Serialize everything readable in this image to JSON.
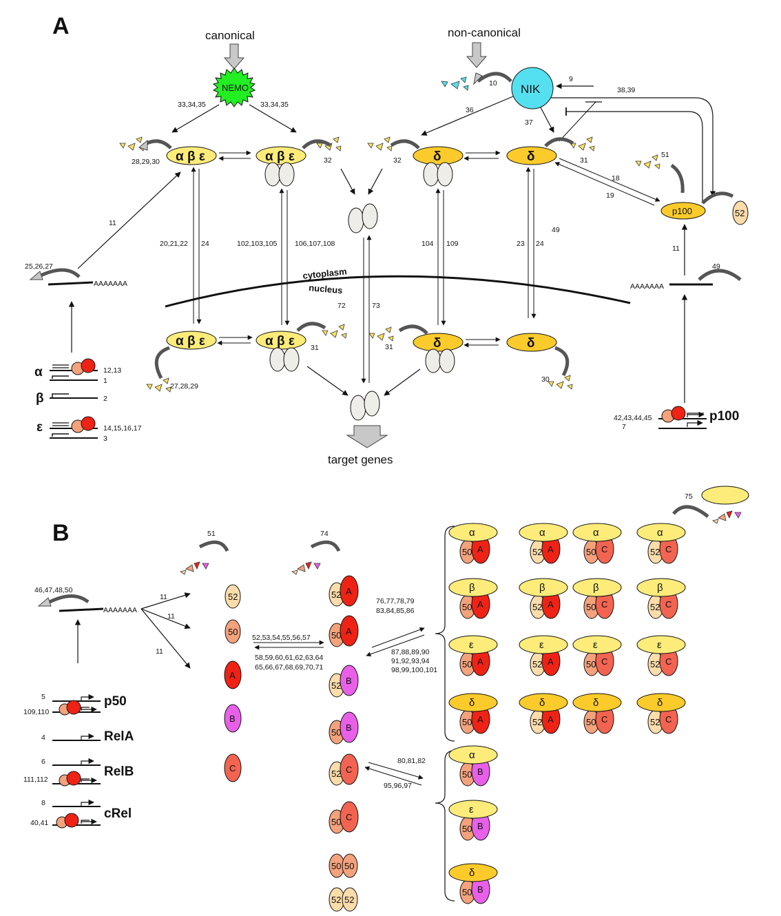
{
  "panel_a": {
    "label": "A",
    "canonical": "canonical",
    "non_canonical": "non-canonical",
    "nemo": "NEMO",
    "nik": "NIK",
    "abe": "α β ε",
    "delta": "δ",
    "p100": "p100",
    "p52": "52",
    "cytoplasm": "cytoplasm",
    "nucleus": "nucleus",
    "polyA": "AAAAAAA",
    "target_genes": "target genes",
    "gene_alpha": "α",
    "gene_beta": "β",
    "gene_epsilon": "ε",
    "gene_p100": "p100",
    "nums": {
      "n9": "9",
      "n10": "10",
      "n3839": "38,39",
      "n36": "36",
      "n37": "37",
      "n333435a": "33,34,35",
      "n333435b": "33,34,35",
      "n282930": "28,29,30",
      "n32a": "32",
      "n32b": "32",
      "n31a": "31",
      "n51": "51",
      "n18": "18",
      "n19": "19",
      "n11a": "11",
      "n11b": "11",
      "n252627": "25,26,27",
      "n202122": "20,21,22",
      "n24a": "24",
      "n102103105": "102,103,105",
      "n106107108": "106,107,108",
      "n104": "104",
      "n109": "109",
      "n23": "23",
      "n24b": "24",
      "n49a": "49",
      "n49b": "49",
      "n72": "72",
      "n73": "73",
      "n31b": "31",
      "n31c": "31",
      "n272829": "27,28,29",
      "n30": "30",
      "n1213": "12,13",
      "n1": "1",
      "n2": "2",
      "n14151617": "14,15,16,17",
      "n3": "3",
      "n42434445": "42,43,44,45",
      "n7": "7"
    }
  },
  "panel_b": {
    "label": "B",
    "polyA": "AAAAAAA",
    "monomers": [
      "52",
      "50",
      "A",
      "B",
      "C"
    ],
    "dimers": [
      [
        "52",
        "A"
      ],
      [
        "50",
        "A"
      ],
      [
        "52",
        "B"
      ],
      [
        "50",
        "B"
      ],
      [
        "52",
        "C"
      ],
      [
        "50",
        "C"
      ],
      [
        "50",
        "50"
      ],
      [
        "52",
        "52"
      ]
    ],
    "inhibitors": [
      "α",
      "β",
      "ε",
      "δ"
    ],
    "complex_top": [
      [
        "50",
        "A"
      ],
      [
        "52",
        "A"
      ],
      [
        "50",
        "C"
      ],
      [
        "52",
        "C"
      ]
    ],
    "complex_b": [
      "α",
      "ε",
      "δ"
    ],
    "genes": [
      "p50",
      "RelA",
      "RelB",
      "cRel"
    ],
    "nums": {
      "n51": "51",
      "n74": "74",
      "n75": "75",
      "n46475850": "46,47,48,50",
      "n11a": "11",
      "n11b": "11",
      "n11c": "11",
      "n525354": "52,53,54,55,56,57",
      "n5864": "58,59,60,61,62,63,64",
      "n6571": "65,66,67,68,69,70,71",
      "n7679": "76,77,78,79",
      "n8386": "83,84,85,86",
      "n8790": "87,88,89,90",
      "n9194": "91,92,93,94",
      "n98101": "98,99,100,101",
      "n808182": "80,81,82",
      "n959697": "95,96,97",
      "n5": "5",
      "n109110": "109,110",
      "n4": "4",
      "n6": "6",
      "n111112": "111,112",
      "n8": "8",
      "n4041": "40,41"
    }
  },
  "colors": {
    "nemo": "#22ee22",
    "nik": "#55e0f0",
    "ikb_light": "#fdec7a",
    "ikb_delta": "#fbcb2b",
    "p52": "#fbdcaa",
    "p50": "#f3a27c",
    "relA": "#ee2316",
    "relB": "#e860e8",
    "cRel": "#f26451",
    "grey": "#efede8",
    "arrow_grey": "#c8c8c8"
  }
}
